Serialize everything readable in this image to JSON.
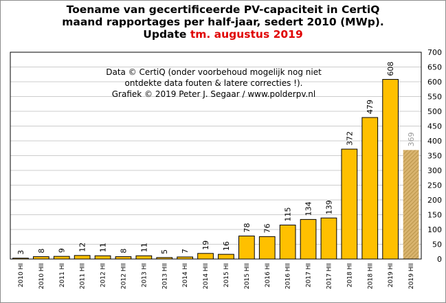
{
  "header": {
    "line1": "Toename van gecertificeerde PV-capaciteit in CertiQ",
    "line2": "maand rapportages per half-jaar, sedert 2010 (MWp).",
    "line3_prefix": "Update ",
    "line3_highlight": "tm. augustus 2019"
  },
  "note": {
    "line1": "Data © CertiQ (onder voorbehoud mogelijk nog niet",
    "line2": "ontdekte data fouten & latere correcties !).",
    "line3": "Grafiek © 2019 Peter J. Segaar / www.polderpv.nl"
  },
  "colors": {
    "bar": "#ffc000",
    "bar_partial": "#d4b06a",
    "grid": "#cccccc",
    "highlight": "#e00000"
  },
  "chart_data": {
    "type": "bar",
    "categories": [
      "2010 HI",
      "2010 HII",
      "2011 HI",
      "2011 HII",
      "2012 HI",
      "2012 HII",
      "2013 HI",
      "2013 HII",
      "2014 HI",
      "2014 HII",
      "2015 HI",
      "2015 HII",
      "2016 HI",
      "2016 HII",
      "2017 HI",
      "2017 HII",
      "2018 HI",
      "2018 HII",
      "2019 HI",
      "2019 HII"
    ],
    "values": [
      3,
      8,
      9,
      12,
      11,
      8,
      11,
      5,
      7,
      19,
      16,
      78,
      76,
      115,
      134,
      139,
      372,
      479,
      608,
      369
    ],
    "partial": [
      false,
      false,
      false,
      false,
      false,
      false,
      false,
      false,
      false,
      false,
      false,
      false,
      false,
      false,
      false,
      false,
      false,
      false,
      false,
      true
    ],
    "ylim": [
      0,
      700
    ],
    "yticks": [
      0,
      50,
      100,
      150,
      200,
      250,
      300,
      350,
      400,
      450,
      500,
      550,
      600,
      650,
      700
    ],
    "grid": true,
    "y_axis_side": "right"
  }
}
